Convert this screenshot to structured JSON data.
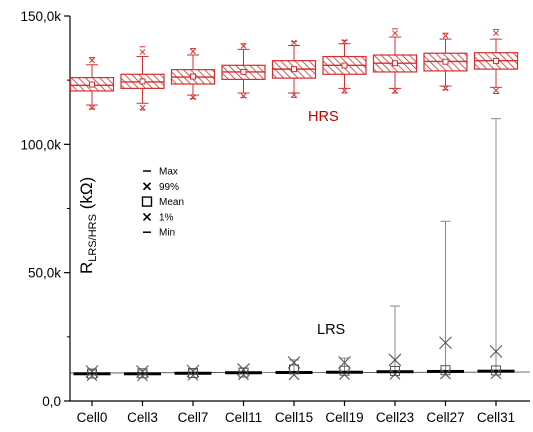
{
  "chart_data": {
    "type": "box",
    "ylabel": "R",
    "ylabel_sub": "LRS/HRS",
    "ylabel_unit": " (kΩ)",
    "ylim": [
      0,
      150000
    ],
    "yticks": [
      {
        "value": 0,
        "label": "0,0"
      },
      {
        "value": 50000,
        "label": "50,0k"
      },
      {
        "value": 100000,
        "label": "100,0k"
      },
      {
        "value": 150000,
        "label": "150,0k"
      }
    ],
    "categories": [
      "Cell0",
      "Cell3",
      "Cell7",
      "Cell11",
      "Cell15",
      "Cell19",
      "Cell23",
      "Cell27",
      "Cell31"
    ],
    "annotations": [
      {
        "text": "HRS",
        "color": "#c00000"
      },
      {
        "text": "LRS",
        "color": "#000000"
      }
    ],
    "legend": {
      "placement": "center-left",
      "entries": [
        {
          "label": "Max",
          "marker": "dash"
        },
        {
          "label": "99%",
          "marker": "x"
        },
        {
          "label": "Mean",
          "marker": "square"
        },
        {
          "label": "1%",
          "marker": "x"
        },
        {
          "label": "Min",
          "marker": "dash"
        }
      ]
    },
    "series": [
      {
        "name": "HRS",
        "color": "#d32f2f",
        "boxes": [
          {
            "q1": 120800,
            "median": 123000,
            "q3": 126000,
            "mean": 123300,
            "whisker_low": 115300,
            "whisker_high": 131000,
            "p1": 114300,
            "p99": 132700,
            "min": 113800,
            "max": 133800
          },
          {
            "q1": 121800,
            "median": 124300,
            "q3": 127300,
            "mean": 124500,
            "whisker_low": 116000,
            "whisker_high": 134200,
            "p1": 114300,
            "p99": 136000,
            "min": 113400,
            "max": 138000
          },
          {
            "q1": 123500,
            "median": 126200,
            "q3": 129100,
            "mean": 126400,
            "whisker_low": 119200,
            "whisker_high": 134800,
            "p1": 118300,
            "p99": 136200,
            "min": 117800,
            "max": 137300
          },
          {
            "q1": 125300,
            "median": 128200,
            "q3": 130800,
            "mean": 128200,
            "whisker_low": 120000,
            "whisker_high": 137000,
            "p1": 118800,
            "p99": 138300,
            "min": 118300,
            "max": 139200
          },
          {
            "q1": 125800,
            "median": 129300,
            "q3": 132600,
            "mean": 129300,
            "whisker_low": 120000,
            "whisker_high": 138500,
            "p1": 119300,
            "p99": 139700,
            "min": 118300,
            "max": 140000
          },
          {
            "q1": 127300,
            "median": 130800,
            "q3": 134200,
            "mean": 130700,
            "whisker_low": 121800,
            "whisker_high": 139200,
            "p1": 121000,
            "p99": 140000,
            "min": 120000,
            "max": 140500
          },
          {
            "q1": 128200,
            "median": 131600,
            "q3": 134800,
            "mean": 131600,
            "whisker_low": 121800,
            "whisker_high": 141800,
            "p1": 120800,
            "p99": 143300,
            "min": 120000,
            "max": 145000
          },
          {
            "q1": 128600,
            "median": 132300,
            "q3": 135500,
            "mean": 132200,
            "whisker_low": 122700,
            "whisker_high": 141000,
            "p1": 121800,
            "p99": 142300,
            "min": 121300,
            "max": 143300
          },
          {
            "q1": 129300,
            "median": 132600,
            "q3": 135700,
            "mean": 132500,
            "whisker_low": 122200,
            "whisker_high": 141000,
            "p1": 121000,
            "p99": 143300,
            "min": 119800,
            "max": 144700
          }
        ]
      },
      {
        "name": "LRS",
        "color": "#000000",
        "boxes": [
          {
            "q1": 10400,
            "median": 10700,
            "q3": 11000,
            "mean": 10700,
            "p1": 9800,
            "p99": 11500,
            "min": 9500,
            "max": 12000
          },
          {
            "q1": 10400,
            "median": 10700,
            "q3": 11000,
            "mean": 10800,
            "p1": 9800,
            "p99": 11500,
            "min": 9500,
            "max": 12000
          },
          {
            "q1": 10600,
            "median": 10900,
            "q3": 11200,
            "mean": 10900,
            "p1": 10000,
            "p99": 11700,
            "min": 9700,
            "max": 12200
          },
          {
            "q1": 10800,
            "median": 11100,
            "q3": 11400,
            "mean": 11100,
            "p1": 10200,
            "p99": 12300,
            "min": 9900,
            "max": 12700
          },
          {
            "q1": 10900,
            "median": 11200,
            "q3": 11500,
            "mean": 12300,
            "p1": 10200,
            "p99": 15000,
            "min": 9900,
            "max": 16000
          },
          {
            "q1": 11000,
            "median": 11300,
            "q3": 11600,
            "mean": 11800,
            "p1": 10300,
            "p99": 15000,
            "min": 10000,
            "max": 16700
          },
          {
            "q1": 11200,
            "median": 11500,
            "q3": 11800,
            "mean": 11700,
            "p1": 10400,
            "p99": 16000,
            "min": 10100,
            "max": 37000
          },
          {
            "q1": 11300,
            "median": 11600,
            "q3": 11900,
            "mean": 12000,
            "p1": 10500,
            "p99": 22700,
            "min": 10200,
            "max": 70000
          },
          {
            "q1": 11400,
            "median": 11700,
            "q3": 12000,
            "mean": 11900,
            "p1": 10600,
            "p99": 19300,
            "min": 10200,
            "max": 110000
          }
        ]
      }
    ]
  }
}
